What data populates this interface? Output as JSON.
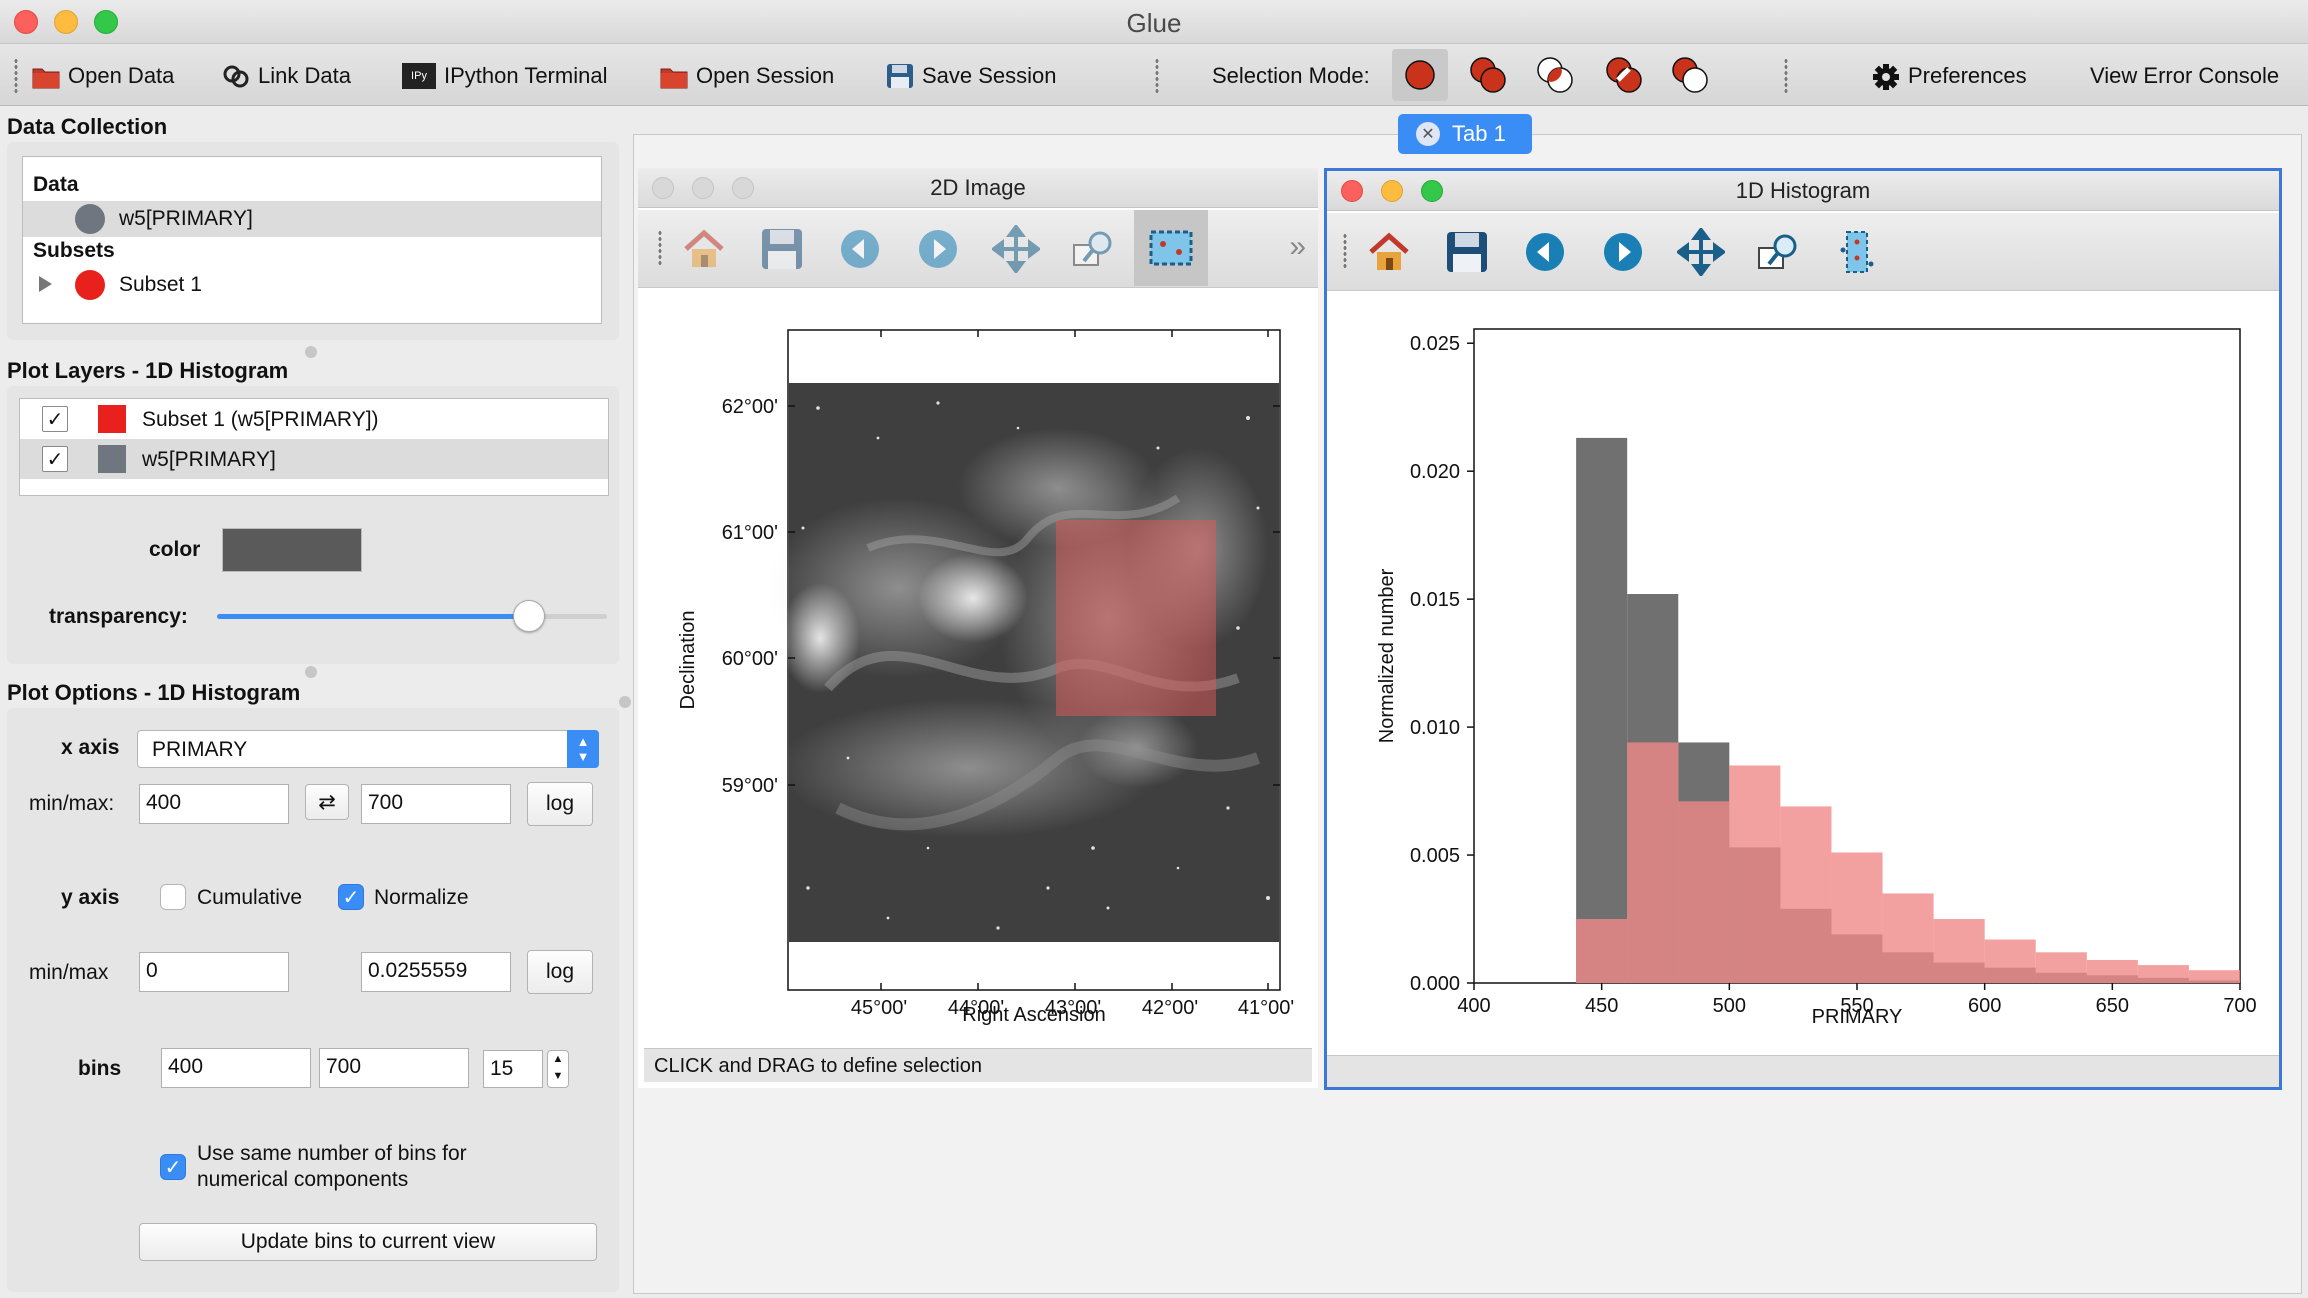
{
  "window": {
    "title": "Glue"
  },
  "toolbar": {
    "open_data": "Open Data",
    "link_data": "Link Data",
    "ipython_terminal": "IPython Terminal",
    "ipython_icon_text": "IPy",
    "open_session": "Open Session",
    "save_session": "Save Session",
    "selection_mode": "Selection Mode:",
    "preferences": "Preferences",
    "view_error_console": "View Error Console"
  },
  "data_collection": {
    "title": "Data Collection",
    "data_header": "Data",
    "data_item": "w5[PRIMARY]",
    "subsets_header": "Subsets",
    "subset_item": "Subset 1"
  },
  "plot_layers": {
    "title": "Plot Layers - 1D Histogram",
    "layers": [
      {
        "label": "Subset 1 (w5[PRIMARY])",
        "color": "#e8211c",
        "checked": true
      },
      {
        "label": "w5[PRIMARY]",
        "color": "#6f7680",
        "checked": true
      }
    ],
    "color_label": "color",
    "color_value": "#5a5a5a",
    "transparency_label": "transparency:",
    "transparency": 0.8
  },
  "plot_options": {
    "title": "Plot Options - 1D Histogram",
    "x_axis_label": "x axis",
    "x_axis_value": "PRIMARY",
    "x_minmax_label": "min/max:",
    "x_min": "400",
    "x_max": "700",
    "swap_symbol": "⇄",
    "log": "log",
    "y_axis_label": "y axis",
    "cumulative": "Cumulative",
    "normalize": "Normalize",
    "y_minmax_label": "min/max",
    "y_min": "0",
    "y_max": "0.0255559",
    "bins_label": "bins",
    "bins_min": "400",
    "bins_max": "700",
    "bins_count": "15",
    "same_bins_line1": "Use same number of bins for",
    "same_bins_line2": "numerical components",
    "update_bins": "Update bins to current view"
  },
  "tab": {
    "label": "Tab 1"
  },
  "image_viewer": {
    "title": "2D Image",
    "status": "CLICK and DRAG to define selection",
    "xlabel": "Right Ascension",
    "ylabel": "Declination",
    "xticks": [
      "45°00'",
      "44°00'",
      "43°00'",
      "42°00'",
      "41°00'"
    ],
    "yticks": [
      "62°00'",
      "61°00'",
      "60°00'",
      "59°00'"
    ]
  },
  "histogram_viewer": {
    "title": "1D Histogram"
  },
  "chart_data": {
    "type": "bar",
    "title": "1D Histogram",
    "xlabel": "PRIMARY",
    "ylabel": "Normalized number",
    "xlim": [
      400,
      700
    ],
    "ylim": [
      0,
      0.0255559
    ],
    "xticks": [
      "400",
      "450",
      "500",
      "550",
      "600",
      "650",
      "700"
    ],
    "yticks": [
      "0.000",
      "0.005",
      "0.010",
      "0.015",
      "0.020",
      "0.025"
    ],
    "bin_edges": [
      400,
      420,
      440,
      460,
      480,
      500,
      520,
      540,
      560,
      580,
      600,
      620,
      640,
      660,
      680,
      700
    ],
    "series": [
      {
        "name": "w5[PRIMARY]",
        "color": "#707070",
        "values": [
          0,
          0,
          0.0213,
          0.0152,
          0.0094,
          0.0053,
          0.0029,
          0.0019,
          0.0012,
          0.0008,
          0.0006,
          0.0004,
          0.0003,
          0.0002,
          0.0001
        ]
      },
      {
        "name": "Subset 1 (w5[PRIMARY])",
        "color": "#f08a88",
        "values": [
          0,
          0,
          0.0025,
          0.0094,
          0.0071,
          0.0085,
          0.0069,
          0.0051,
          0.0035,
          0.0025,
          0.0017,
          0.0012,
          0.0009,
          0.0007,
          0.0005
        ]
      }
    ]
  }
}
